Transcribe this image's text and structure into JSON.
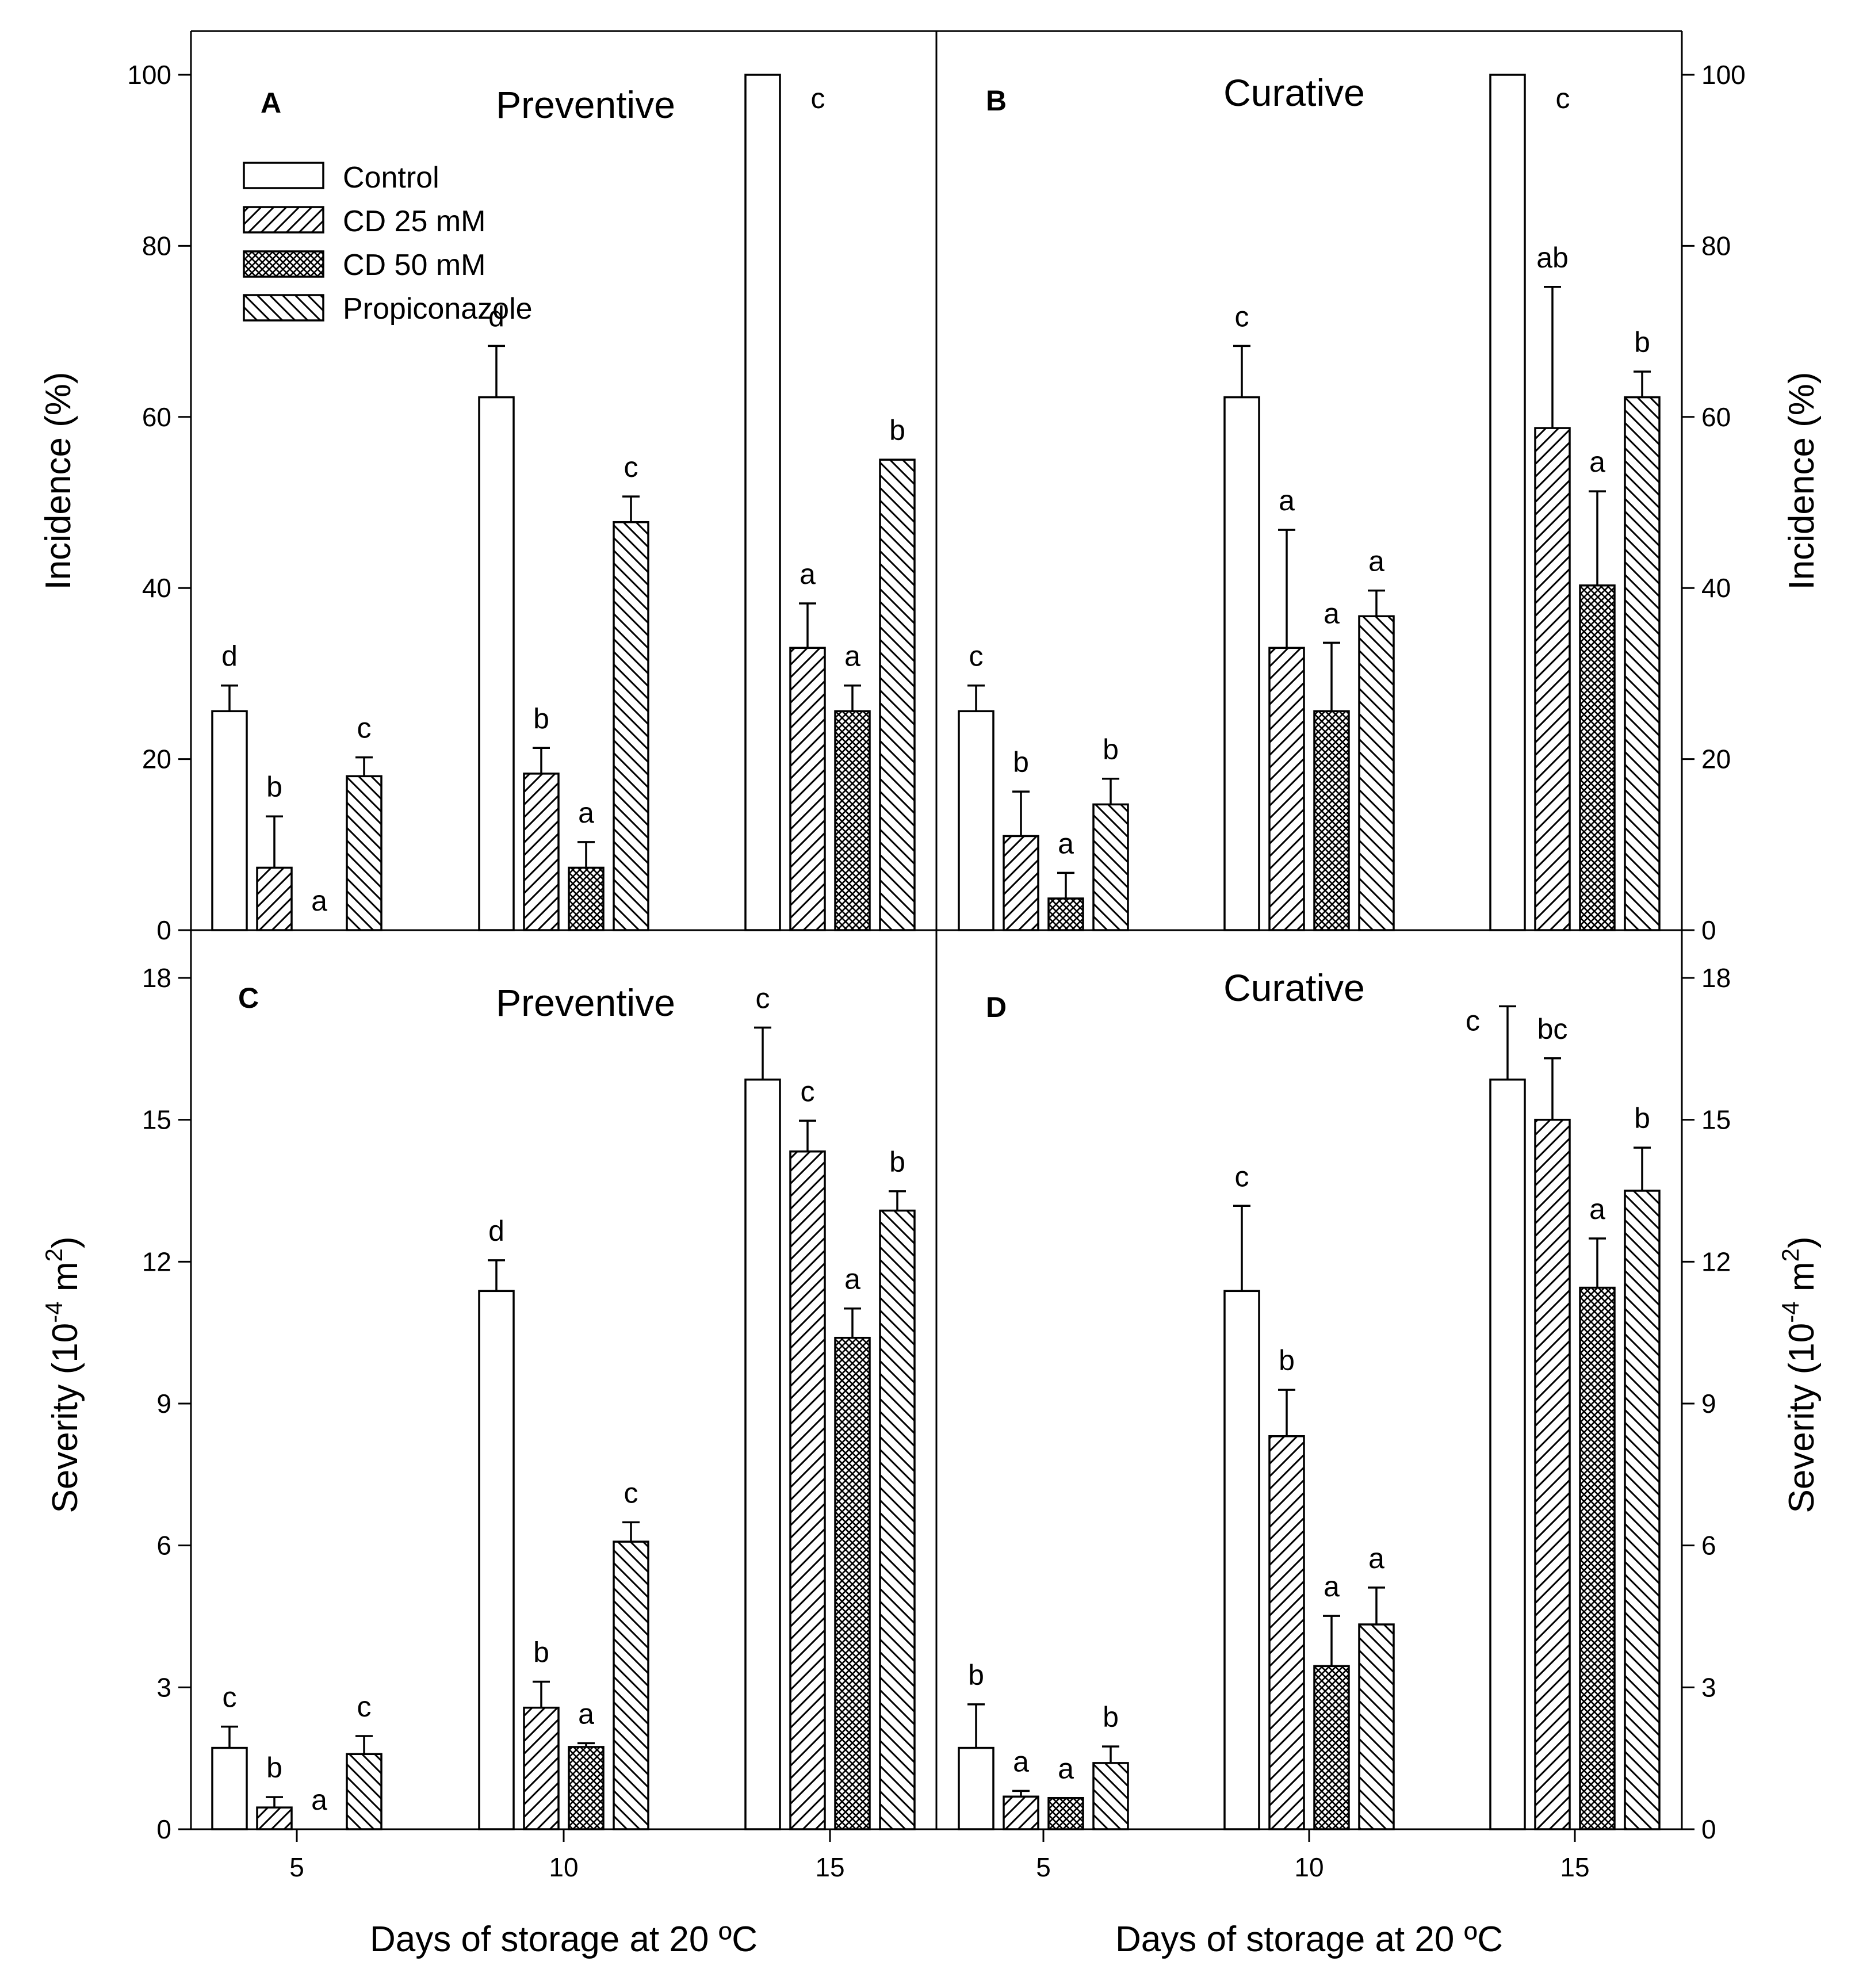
{
  "chart_data": {
    "type": "bar",
    "x_title": "Days of storage at 20 ºC",
    "categories": [
      "5",
      "10",
      "15"
    ],
    "legend": [
      {
        "name": "Control",
        "pattern": "empty"
      },
      {
        "name": "CD 25 mM",
        "pattern": "diag-up"
      },
      {
        "name": "CD 50 mM",
        "pattern": "cross"
      },
      {
        "name": "Propiconazole",
        "pattern": "diag-down"
      }
    ],
    "panels": [
      {
        "letter": "A",
        "title": "Preventive",
        "y_title": "Incidence (%)",
        "ylim": [
          0,
          100
        ],
        "yticks": [
          "0",
          "20",
          "40",
          "60",
          "80",
          "100"
        ],
        "series": [
          {
            "name": "Control",
            "values": [
              25.6,
              62.3,
              100
            ],
            "err": [
              3.0,
              6.0,
              0
            ],
            "letters": [
              "d",
              "d",
              "c"
            ]
          },
          {
            "name": "CD 25 mM",
            "values": [
              7.3,
              18.3,
              33.0
            ],
            "err": [
              6.0,
              3.0,
              5.2
            ],
            "letters": [
              "b",
              "b",
              "a"
            ]
          },
          {
            "name": "CD 50 mM",
            "values": [
              0,
              7.3,
              25.6
            ],
            "err": [
              0,
              3.0,
              3.0
            ],
            "letters": [
              "a",
              "a",
              "a"
            ]
          },
          {
            "name": "Propiconazole",
            "values": [
              18.0,
              47.7,
              55.0
            ],
            "err": [
              2.2,
              3.0,
              0
            ],
            "letters": [
              "c",
              "c",
              "b"
            ]
          }
        ]
      },
      {
        "letter": "B",
        "title": "Curative",
        "y_title": "Incidence (%)",
        "ylim": [
          0,
          100
        ],
        "yticks": [
          "0",
          "20",
          "40",
          "60",
          "80",
          "100"
        ],
        "series": [
          {
            "name": "Control",
            "values": [
              25.6,
              62.3,
              100
            ],
            "err": [
              3.0,
              6.0,
              0
            ],
            "letters": [
              "c",
              "c",
              "c"
            ]
          },
          {
            "name": "CD 25 mM",
            "values": [
              11.0,
              33.0,
              58.7
            ],
            "err": [
              5.2,
              13.8,
              16.5
            ],
            "letters": [
              "b",
              "a",
              "ab"
            ]
          },
          {
            "name": "CD 50 mM",
            "values": [
              3.7,
              25.6,
              40.3
            ],
            "err": [
              3.0,
              8.0,
              11.0
            ],
            "letters": [
              "a",
              "a",
              "a"
            ]
          },
          {
            "name": "Propiconazole",
            "values": [
              14.7,
              36.7,
              62.3
            ],
            "err": [
              3.0,
              3.0,
              3.0
            ],
            "letters": [
              "b",
              "a",
              "b"
            ]
          }
        ]
      },
      {
        "letter": "C",
        "title": "Preventive",
        "y_title": "Severity (10",
        "y_title_sup": "-4",
        "y_title_end": " m",
        "y_title_sup2": "2",
        "y_title_close": ")",
        "ylim": [
          0,
          18
        ],
        "yticks": [
          "0",
          "3",
          "6",
          "9",
          "12",
          "15",
          "18"
        ],
        "series": [
          {
            "name": "Control",
            "values": [
              1.72,
              11.38,
              15.85
            ],
            "err": [
              0.45,
              0.65,
              1.1
            ],
            "letters": [
              "c",
              "d",
              "c"
            ]
          },
          {
            "name": "CD 25 mM",
            "values": [
              0.46,
              2.57,
              14.33
            ],
            "err": [
              0.22,
              0.55,
              0.65
            ],
            "letters": [
              "b",
              "b",
              "c"
            ]
          },
          {
            "name": "CD 50 mM",
            "values": [
              0,
              1.74,
              10.39
            ],
            "err": [
              0,
              0.08,
              0.62
            ],
            "letters": [
              "a",
              "a",
              "a"
            ]
          },
          {
            "name": "Propiconazole",
            "values": [
              1.59,
              6.08,
              13.08
            ],
            "err": [
              0.38,
              0.41,
              0.41
            ],
            "letters": [
              "c",
              "c",
              "b"
            ]
          }
        ]
      },
      {
        "letter": "D",
        "title": "Curative",
        "y_title": "Severity (10",
        "y_title_sup": "-4",
        "y_title_end": " m",
        "y_title_sup2": "2",
        "y_title_close": ")",
        "ylim": [
          0,
          18
        ],
        "yticks": [
          "0",
          "3",
          "6",
          "9",
          "12",
          "15",
          "18"
        ],
        "series": [
          {
            "name": "Control",
            "values": [
              1.72,
              11.38,
              15.85
            ],
            "err": [
              0.92,
              1.8,
              1.55
            ],
            "letters": [
              "b",
              "c",
              "c"
            ]
          },
          {
            "name": "CD 25 mM",
            "values": [
              0.69,
              8.31,
              15.0
            ],
            "err": [
              0.12,
              0.98,
              1.3
            ],
            "letters": [
              "a",
              "b",
              "bc"
            ]
          },
          {
            "name": "CD 50 mM",
            "values": [
              0.66,
              3.45,
              11.45
            ],
            "err": [
              0.0,
              1.06,
              1.04
            ],
            "letters": [
              "a",
              "a",
              "a"
            ]
          },
          {
            "name": "Propiconazole",
            "values": [
              1.4,
              4.33,
              13.5
            ],
            "err": [
              0.35,
              0.78,
              0.91
            ],
            "letters": [
              "b",
              "a",
              "b"
            ]
          }
        ]
      }
    ]
  }
}
